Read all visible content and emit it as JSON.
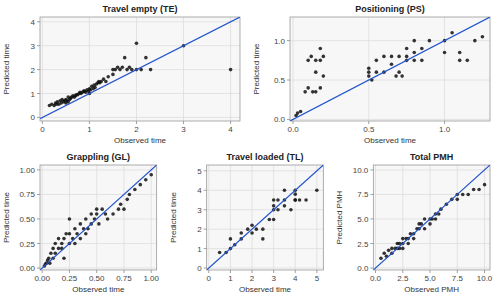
{
  "chart_data": [
    {
      "type": "scatter",
      "title": "Travel empty (TE)",
      "xlabel": "Observed time",
      "ylabel": "Predicted time",
      "xlim": [
        -0.05,
        4.2
      ],
      "ylim": [
        -0.15,
        4.2
      ],
      "xticks": [
        0,
        1,
        2,
        3,
        4
      ],
      "yticks": [
        0,
        1,
        2,
        3,
        4
      ],
      "grid": true,
      "series": [
        {
          "type": "scatter",
          "color": "#111111",
          "x": [
            0.15,
            0.2,
            0.25,
            0.28,
            0.3,
            0.32,
            0.35,
            0.38,
            0.4,
            0.42,
            0.45,
            0.47,
            0.5,
            0.5,
            0.52,
            0.55,
            0.55,
            0.58,
            0.6,
            0.62,
            0.65,
            0.68,
            0.7,
            0.72,
            0.75,
            0.78,
            0.8,
            0.82,
            0.85,
            0.88,
            0.9,
            0.92,
            0.95,
            0.98,
            1.0,
            1.0,
            1.02,
            1.05,
            1.08,
            1.1,
            1.12,
            1.15,
            1.18,
            1.2,
            1.22,
            1.25,
            1.3,
            1.35,
            1.4,
            1.5,
            1.5,
            1.55,
            1.6,
            1.65,
            1.7,
            1.75,
            1.8,
            1.85,
            1.9,
            2.0,
            2.0,
            2.1,
            2.2,
            2.3,
            3.0,
            4.0
          ],
          "values": [
            0.5,
            0.55,
            0.5,
            0.6,
            0.55,
            0.65,
            0.55,
            0.7,
            0.6,
            0.75,
            0.65,
            0.7,
            0.6,
            0.75,
            0.7,
            0.65,
            0.85,
            0.75,
            0.8,
            0.85,
            0.9,
            0.85,
            0.9,
            0.95,
            0.95,
            1.0,
            1.05,
            1.0,
            1.05,
            1.1,
            1.1,
            1.05,
            1.15,
            1.1,
            1.0,
            1.2,
            1.15,
            1.3,
            1.2,
            1.35,
            1.25,
            1.4,
            1.45,
            1.5,
            1.45,
            1.5,
            1.6,
            1.5,
            1.7,
            1.8,
            2.0,
            2.0,
            2.1,
            2.0,
            2.1,
            2.5,
            2.0,
            2.1,
            2.0,
            3.1,
            2.0,
            2.0,
            2.5,
            2.0,
            3.0,
            2.0
          ]
        },
        {
          "type": "line",
          "color": "#2255cc",
          "x": [
            -0.05,
            4.2
          ],
          "values": [
            -0.05,
            4.2
          ]
        }
      ]
    },
    {
      "type": "scatter",
      "title": "Positioning (PS)",
      "xlabel": "Observed time",
      "ylabel": "Predicted time",
      "xlim": [
        -0.02,
        1.3
      ],
      "ylim": [
        -0.02,
        1.3
      ],
      "xticks": [
        {
          "value": 0,
          "label": "0.0"
        },
        0.5,
        {
          "value": 1,
          "label": "1.0"
        }
      ],
      "yticks": [
        {
          "value": 0,
          "label": "0.0"
        },
        0.5,
        {
          "value": 1,
          "label": "1.0"
        }
      ],
      "grid": true,
      "series": [
        {
          "type": "scatter",
          "color": "#111111",
          "x": [
            0.02,
            0.03,
            0.05,
            0.08,
            0.1,
            0.1,
            0.12,
            0.13,
            0.15,
            0.15,
            0.15,
            0.18,
            0.18,
            0.18,
            0.2,
            0.2,
            0.5,
            0.5,
            0.5,
            0.52,
            0.55,
            0.55,
            0.6,
            0.6,
            0.65,
            0.65,
            0.68,
            0.7,
            0.7,
            0.72,
            0.75,
            0.75,
            0.75,
            0.8,
            0.8,
            0.8,
            0.85,
            0.85,
            0.9,
            1.0,
            1.0,
            1.05,
            1.1,
            1.1,
            1.15,
            1.2,
            1.25
          ],
          "values": [
            0.05,
            0.08,
            0.1,
            0.35,
            0.75,
            0.4,
            0.8,
            0.35,
            0.35,
            0.6,
            0.75,
            0.4,
            0.75,
            0.9,
            0.55,
            0.8,
            0.55,
            0.6,
            0.65,
            0.5,
            0.6,
            0.75,
            0.6,
            0.8,
            0.7,
            0.8,
            0.55,
            0.6,
            0.8,
            0.55,
            0.75,
            0.8,
            0.9,
            0.75,
            0.85,
            1.0,
            0.75,
            0.9,
            1.0,
            0.85,
            1.0,
            1.1,
            0.75,
            0.85,
            0.75,
            1.0,
            1.05
          ]
        },
        {
          "type": "line",
          "color": "#2255cc",
          "x": [
            -0.02,
            1.3
          ],
          "values": [
            -0.02,
            1.3
          ]
        }
      ]
    },
    {
      "type": "scatter",
      "title": "Grappling (GL)",
      "xlabel": "Observed time",
      "ylabel": "Predicted time",
      "xlim": [
        -0.02,
        1.05
      ],
      "ylim": [
        -0.02,
        1.05
      ],
      "xticks": [
        {
          "value": 0,
          "label": "0.00"
        },
        {
          "value": 0.25,
          "label": "0.25"
        },
        {
          "value": 0.5,
          "label": "0.50"
        },
        {
          "value": 0.75,
          "label": "0.75"
        },
        {
          "value": 1,
          "label": "1.00"
        }
      ],
      "yticks": [
        {
          "value": 0,
          "label": "0.00"
        },
        {
          "value": 0.25,
          "label": "0.25"
        },
        {
          "value": 0.5,
          "label": "0.50"
        },
        {
          "value": 0.75,
          "label": "0.75"
        },
        {
          "value": 1,
          "label": "1.00"
        }
      ],
      "grid": true,
      "series": [
        {
          "type": "scatter",
          "color": "#111111",
          "x": [
            0.02,
            0.03,
            0.04,
            0.05,
            0.06,
            0.07,
            0.08,
            0.1,
            0.1,
            0.12,
            0.12,
            0.15,
            0.15,
            0.18,
            0.18,
            0.2,
            0.2,
            0.22,
            0.25,
            0.25,
            0.25,
            0.28,
            0.3,
            0.3,
            0.32,
            0.35,
            0.35,
            0.38,
            0.4,
            0.4,
            0.42,
            0.45,
            0.45,
            0.48,
            0.5,
            0.5,
            0.52,
            0.55,
            0.58,
            0.6,
            0.65,
            0.7,
            0.72,
            0.75,
            0.78,
            0.8,
            0.85,
            0.9,
            0.95,
            1.0
          ],
          "values": [
            0.02,
            0.04,
            0.05,
            0.08,
            0.1,
            0.05,
            0.15,
            0.1,
            0.2,
            0.15,
            0.25,
            0.2,
            0.3,
            0.25,
            0.2,
            0.3,
            0.1,
            0.35,
            0.25,
            0.35,
            0.5,
            0.3,
            0.25,
            0.4,
            0.35,
            0.3,
            0.45,
            0.4,
            0.35,
            0.5,
            0.4,
            0.45,
            0.55,
            0.5,
            0.55,
            0.6,
            0.45,
            0.6,
            0.55,
            0.5,
            0.55,
            0.6,
            0.65,
            0.6,
            0.7,
            0.75,
            0.8,
            0.85,
            0.9,
            0.95
          ]
        },
        {
          "type": "line",
          "color": "#2255cc",
          "x": [
            -0.02,
            1.05
          ],
          "values": [
            -0.02,
            1.05
          ]
        }
      ]
    },
    {
      "type": "scatter",
      "title": "Travel loaded (TL)",
      "xlabel": "Observed time",
      "ylabel": "Predicted time",
      "xlim": [
        -0.1,
        5.3
      ],
      "ylim": [
        -0.1,
        5.3
      ],
      "xticks": [
        0,
        1,
        2,
        3,
        4,
        5
      ],
      "yticks": [
        0,
        1,
        2,
        3,
        4,
        5
      ],
      "grid": true,
      "series": [
        {
          "type": "scatter",
          "color": "#111111",
          "x": [
            0.5,
            0.8,
            1.0,
            1.0,
            1.2,
            1.5,
            1.5,
            1.8,
            2.0,
            2.0,
            2.2,
            2.5,
            2.5,
            2.8,
            3.0,
            3.0,
            3.0,
            3.0,
            3.2,
            3.2,
            3.5,
            3.5,
            3.5,
            3.8,
            4.0,
            4.0,
            4.0,
            4.0,
            4.2,
            4.5,
            5.0
          ],
          "values": [
            0.8,
            0.8,
            1.0,
            1.5,
            1.2,
            1.5,
            1.8,
            2.0,
            1.8,
            2.2,
            2.0,
            1.5,
            2.0,
            2.5,
            2.5,
            3.0,
            3.2,
            3.5,
            3.0,
            3.5,
            3.2,
            3.5,
            4.0,
            3.0,
            3.5,
            3.5,
            4.0,
            3.8,
            3.5,
            3.5,
            4.0
          ]
        },
        {
          "type": "line",
          "color": "#2255cc",
          "x": [
            -0.1,
            5.3
          ],
          "values": [
            -0.1,
            5.3
          ]
        }
      ]
    },
    {
      "type": "scatter",
      "title": "Total PMH",
      "xlabel": "Observed PMH",
      "ylabel": "Predicted PMH",
      "xlim": [
        -0.2,
        10.5
      ],
      "ylim": [
        -0.2,
        10.5
      ],
      "xticks": [
        {
          "value": 0,
          "label": "0.0"
        },
        2.5,
        {
          "value": 5,
          "label": "5.0"
        },
        7.5,
        {
          "value": 10,
          "label": "10.0"
        }
      ],
      "yticks": [
        {
          "value": 0,
          "label": "0.0"
        },
        2.5,
        {
          "value": 5,
          "label": "5.0"
        },
        7.5,
        {
          "value": 10,
          "label": "10.0"
        }
      ],
      "grid": true,
      "series": [
        {
          "type": "scatter",
          "color": "#111111",
          "x": [
            0.5,
            0.8,
            1.0,
            1.2,
            1.5,
            1.5,
            1.8,
            2.0,
            2.0,
            2.2,
            2.2,
            2.5,
            2.5,
            2.5,
            2.8,
            3.0,
            3.0,
            3.2,
            3.5,
            3.5,
            3.8,
            4.0,
            4.0,
            4.2,
            4.5,
            4.5,
            5.0,
            5.0,
            5.2,
            5.5,
            5.5,
            5.8,
            6.0,
            6.5,
            7.0,
            7.5,
            7.5,
            8.0,
            8.5,
            9.0,
            9.5,
            10.0
          ],
          "values": [
            1.0,
            1.5,
            1.2,
            1.8,
            2.0,
            1.5,
            2.0,
            2.0,
            2.5,
            2.5,
            2.0,
            2.5,
            3.0,
            2.0,
            3.0,
            3.0,
            2.5,
            3.5,
            3.0,
            3.5,
            4.0,
            4.0,
            4.5,
            4.5,
            4.0,
            5.0,
            4.5,
            5.0,
            5.0,
            5.5,
            5.0,
            5.5,
            6.0,
            6.5,
            7.0,
            7.0,
            7.5,
            7.5,
            7.5,
            8.0,
            8.0,
            8.5
          ]
        },
        {
          "type": "line",
          "color": "#2255cc",
          "x": [
            -0.2,
            10.5
          ],
          "values": [
            -0.2,
            10.5
          ]
        }
      ]
    }
  ]
}
